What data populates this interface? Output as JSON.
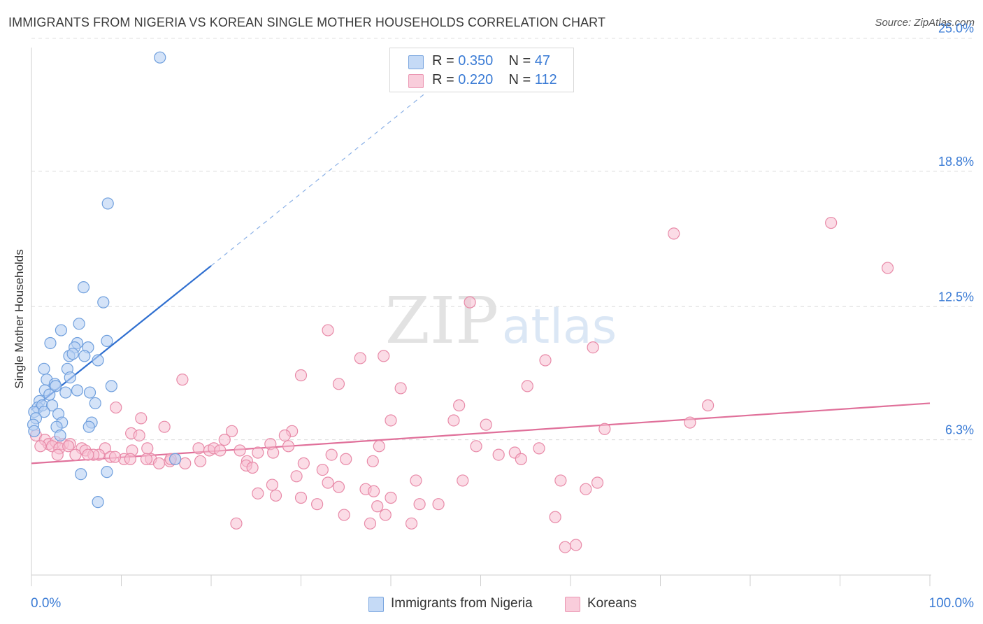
{
  "header": {
    "title": "IMMIGRANTS FROM NIGERIA VS KOREAN SINGLE MOTHER HOUSEHOLDS CORRELATION CHART",
    "source": "Source: ZipAtlas.com"
  },
  "watermark": {
    "zip": "ZIP",
    "atlas": "atlas"
  },
  "legend_top": {
    "rows": [
      {
        "r_label": "R =",
        "r_value": "0.350",
        "n_label": "N =",
        "n_value": "47"
      },
      {
        "r_label": "R =",
        "r_value": "0.220",
        "n_label": "N =",
        "n_value": "112"
      }
    ]
  },
  "legend_bottom": {
    "items": [
      {
        "label": "Immigrants from Nigeria"
      },
      {
        "label": "Koreans"
      }
    ]
  },
  "axes": {
    "x_min_label": "0.0%",
    "x_max_label": "100.0%",
    "y_label": "Single Mother Households"
  },
  "colors": {
    "blue_fill": "#b8d1f3",
    "blue_stroke": "#6f9fdd",
    "blue_line": "#2f6fd0",
    "pink_fill": "#f7c0d2",
    "pink_stroke": "#e88aa8",
    "pink_line": "#e0709a",
    "tick_text": "#3a7bd5",
    "grid": "#dcdcdc"
  },
  "chart_data": {
    "type": "scatter",
    "title": "IMMIGRANTS FROM NIGERIA VS KOREAN SINGLE MOTHER HOUSEHOLDS CORRELATION CHART",
    "xlabel": "",
    "ylabel": "Single Mother Households",
    "xlim": [
      0,
      100
    ],
    "ylim": [
      0,
      25.8
    ],
    "y_ticks": [
      {
        "value": 6.3,
        "label": "6.3%"
      },
      {
        "value": 12.5,
        "label": "12.5%"
      },
      {
        "value": 18.8,
        "label": "18.8%"
      },
      {
        "value": 25.0,
        "label": "25.0%"
      }
    ],
    "x_ticks": [
      0,
      10,
      20,
      30,
      40,
      50,
      60,
      70,
      80,
      90,
      100
    ],
    "grid": true,
    "series": [
      {
        "name": "Immigrants from Nigeria",
        "color": "blue",
        "r": 0.35,
        "n": 47,
        "trend": {
          "x0": 0,
          "y0": 7.7,
          "x1": 20,
          "y1": 14.4,
          "dash_to_x": 47,
          "dash_to_y": 23.5
        },
        "points": [
          [
            14.3,
            24.1
          ],
          [
            8.5,
            17.3
          ],
          [
            5.8,
            13.4
          ],
          [
            8.0,
            12.7
          ],
          [
            3.3,
            11.4
          ],
          [
            5.3,
            11.7
          ],
          [
            8.4,
            10.9
          ],
          [
            2.1,
            10.8
          ],
          [
            5.1,
            10.8
          ],
          [
            6.3,
            10.6
          ],
          [
            4.8,
            10.6
          ],
          [
            4.2,
            10.2
          ],
          [
            5.9,
            10.2
          ],
          [
            4.6,
            10.3
          ],
          [
            7.4,
            10.0
          ],
          [
            1.4,
            9.6
          ],
          [
            4.0,
            9.6
          ],
          [
            1.7,
            9.1
          ],
          [
            4.3,
            9.2
          ],
          [
            2.6,
            8.9
          ],
          [
            2.7,
            8.8
          ],
          [
            8.9,
            8.8
          ],
          [
            1.5,
            8.6
          ],
          [
            2.0,
            8.4
          ],
          [
            3.8,
            8.5
          ],
          [
            5.1,
            8.6
          ],
          [
            6.5,
            8.5
          ],
          [
            0.9,
            8.1
          ],
          [
            0.7,
            7.8
          ],
          [
            1.2,
            7.9
          ],
          [
            2.3,
            7.9
          ],
          [
            7.1,
            8.0
          ],
          [
            0.3,
            7.6
          ],
          [
            1.4,
            7.6
          ],
          [
            0.5,
            7.3
          ],
          [
            3.0,
            7.5
          ],
          [
            3.4,
            7.1
          ],
          [
            6.7,
            7.1
          ],
          [
            0.2,
            7.0
          ],
          [
            2.8,
            6.9
          ],
          [
            6.4,
            6.9
          ],
          [
            0.3,
            6.7
          ],
          [
            3.2,
            6.5
          ],
          [
            16.0,
            5.4
          ],
          [
            5.5,
            4.7
          ],
          [
            8.4,
            4.8
          ],
          [
            7.4,
            3.4
          ]
        ]
      },
      {
        "name": "Koreans",
        "color": "pink",
        "r": 0.22,
        "n": 112,
        "trend": {
          "x0": 0,
          "y0": 5.2,
          "x1": 100,
          "y1": 8.0
        },
        "points": [
          [
            71.5,
            15.9
          ],
          [
            89.0,
            16.4
          ],
          [
            95.3,
            14.3
          ],
          [
            48.8,
            12.7
          ],
          [
            33.0,
            11.4
          ],
          [
            62.5,
            10.6
          ],
          [
            36.6,
            10.1
          ],
          [
            39.2,
            10.2
          ],
          [
            57.2,
            10.0
          ],
          [
            30.0,
            9.3
          ],
          [
            16.8,
            9.1
          ],
          [
            34.2,
            8.9
          ],
          [
            41.1,
            8.7
          ],
          [
            55.2,
            8.8
          ],
          [
            47.6,
            7.9
          ],
          [
            75.3,
            7.9
          ],
          [
            9.4,
            7.8
          ],
          [
            12.2,
            7.3
          ],
          [
            40.0,
            7.2
          ],
          [
            47.0,
            7.2
          ],
          [
            50.6,
            7.0
          ],
          [
            73.3,
            7.1
          ],
          [
            14.8,
            6.9
          ],
          [
            22.3,
            6.7
          ],
          [
            29.0,
            6.7
          ],
          [
            28.2,
            6.5
          ],
          [
            63.8,
            6.8
          ],
          [
            11.1,
            6.6
          ],
          [
            12.0,
            6.5
          ],
          [
            21.5,
            6.3
          ],
          [
            26.6,
            6.1
          ],
          [
            28.6,
            6.0
          ],
          [
            0.5,
            6.5
          ],
          [
            1.5,
            6.3
          ],
          [
            1.9,
            6.1
          ],
          [
            2.7,
            6.2
          ],
          [
            3.5,
            6.1
          ],
          [
            4.3,
            6.1
          ],
          [
            1.0,
            6.0
          ],
          [
            2.3,
            6.0
          ],
          [
            3.1,
            5.9
          ],
          [
            4.1,
            6.0
          ],
          [
            5.6,
            5.9
          ],
          [
            8.2,
            5.9
          ],
          [
            6.0,
            5.8
          ],
          [
            11.2,
            5.8
          ],
          [
            12.9,
            5.9
          ],
          [
            18.6,
            5.9
          ],
          [
            19.8,
            5.8
          ],
          [
            20.3,
            5.9
          ],
          [
            21.0,
            5.8
          ],
          [
            23.2,
            5.8
          ],
          [
            25.2,
            5.7
          ],
          [
            26.9,
            5.7
          ],
          [
            33.4,
            5.6
          ],
          [
            38.7,
            6.0
          ],
          [
            49.5,
            6.0
          ],
          [
            52.0,
            5.6
          ],
          [
            53.8,
            5.7
          ],
          [
            56.5,
            5.9
          ],
          [
            2.9,
            5.6
          ],
          [
            4.9,
            5.6
          ],
          [
            7.5,
            5.6
          ],
          [
            8.8,
            5.5
          ],
          [
            10.3,
            5.4
          ],
          [
            11.0,
            5.4
          ],
          [
            13.3,
            5.4
          ],
          [
            16.0,
            5.4
          ],
          [
            18.8,
            5.3
          ],
          [
            35.0,
            5.4
          ],
          [
            38.0,
            5.3
          ],
          [
            14.2,
            5.2
          ],
          [
            15.4,
            5.3
          ],
          [
            17.1,
            5.2
          ],
          [
            24.0,
            5.3
          ],
          [
            30.3,
            5.2
          ],
          [
            23.9,
            5.1
          ],
          [
            15.5,
            5.4
          ],
          [
            12.8,
            5.4
          ],
          [
            6.9,
            5.6
          ],
          [
            6.3,
            5.6
          ],
          [
            9.3,
            5.5
          ],
          [
            24.6,
            5.0
          ],
          [
            32.4,
            4.9
          ],
          [
            29.5,
            4.6
          ],
          [
            42.8,
            4.4
          ],
          [
            48.0,
            4.4
          ],
          [
            54.5,
            5.4
          ],
          [
            58.9,
            4.4
          ],
          [
            61.7,
            4.0
          ],
          [
            63.0,
            4.3
          ],
          [
            26.8,
            4.2
          ],
          [
            33.0,
            4.3
          ],
          [
            34.2,
            4.1
          ],
          [
            37.2,
            4.0
          ],
          [
            38.1,
            3.9
          ],
          [
            25.2,
            3.8
          ],
          [
            30.0,
            3.6
          ],
          [
            27.2,
            3.7
          ],
          [
            31.8,
            3.3
          ],
          [
            38.5,
            3.2
          ],
          [
            40.0,
            3.6
          ],
          [
            43.2,
            3.3
          ],
          [
            45.3,
            3.3
          ],
          [
            34.8,
            2.8
          ],
          [
            39.4,
            2.8
          ],
          [
            22.8,
            2.4
          ],
          [
            37.7,
            2.4
          ],
          [
            42.3,
            2.4
          ],
          [
            58.3,
            2.7
          ],
          [
            59.4,
            1.3
          ],
          [
            60.6,
            1.4
          ]
        ]
      }
    ]
  }
}
